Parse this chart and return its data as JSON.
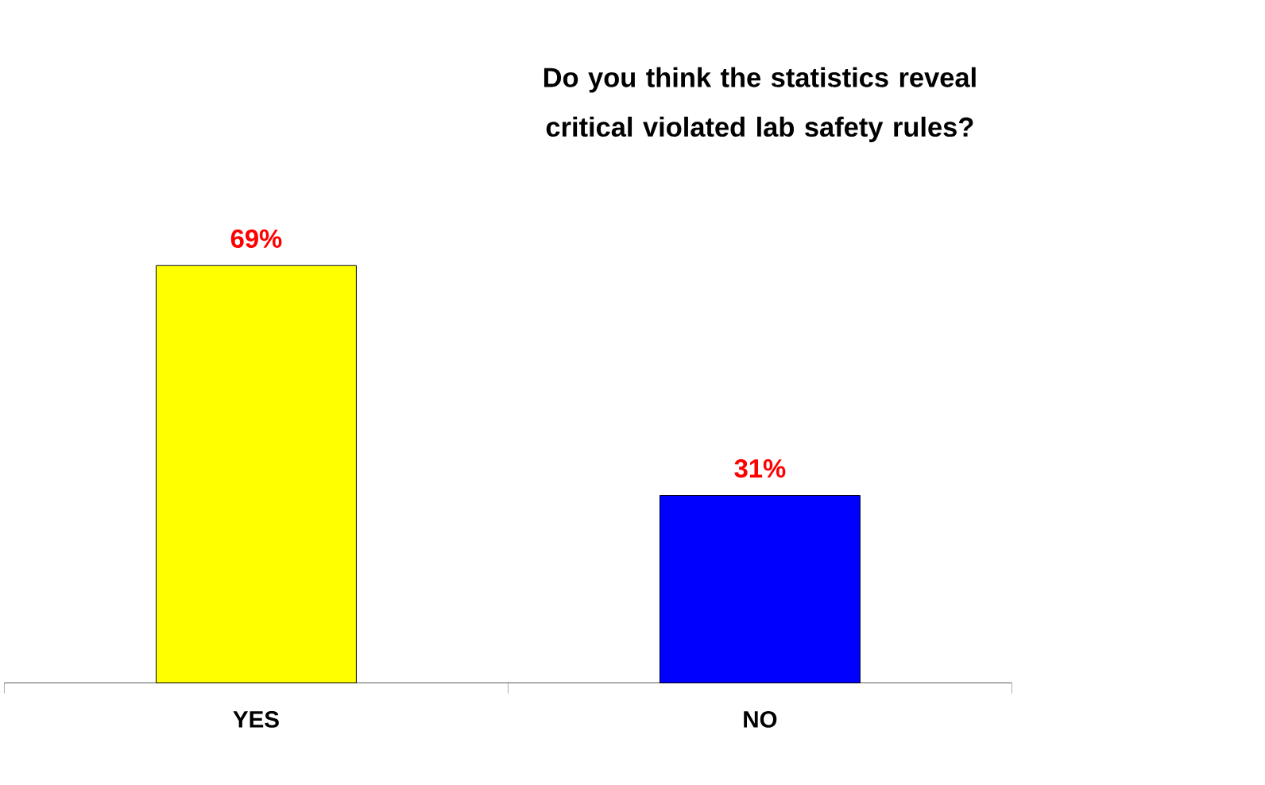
{
  "chart_data": {
    "type": "bar",
    "title": "Do you think the statistics reveal critical violated lab safety rules?",
    "categories": [
      "YES",
      "NO"
    ],
    "values": [
      69,
      31
    ],
    "colors": [
      "#ffff00",
      "#0000ff"
    ],
    "value_labels": [
      "69%",
      "31%"
    ]
  }
}
